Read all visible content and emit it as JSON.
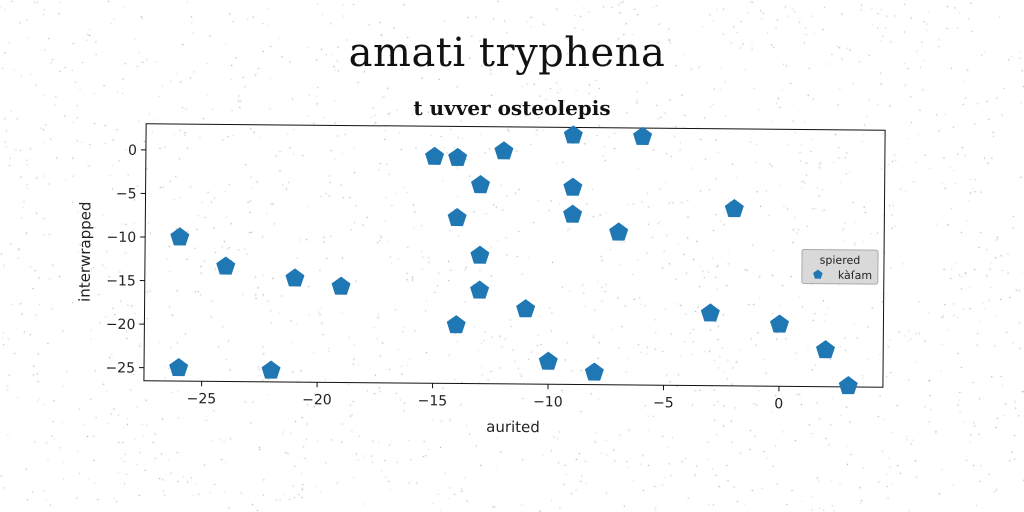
{
  "chart_data": {
    "type": "scatter",
    "title": "amati tryphena",
    "subtitle": "t uvver osteolepis",
    "xlabel": "aurited",
    "ylabel": "interwrapped",
    "xlim": [
      -27.5,
      4.5
    ],
    "ylim": [
      -26.5,
      3
    ],
    "xticks": [
      -25,
      -20,
      -15,
      -10,
      -5,
      0
    ],
    "yticks": [
      0,
      -5,
      -10,
      -15,
      -20,
      -25
    ],
    "grid": false,
    "legend": {
      "title": "spiered",
      "placement": "right"
    },
    "marker_color": "#1f77b4",
    "marker": "pentagon",
    "series": [
      {
        "name": "kàſam",
        "points": [
          [
            -26,
            -10
          ],
          [
            -24,
            -13.3
          ],
          [
            -21,
            -14.6
          ],
          [
            -19,
            -15.5
          ],
          [
            -26,
            -25
          ],
          [
            -22,
            -25.2
          ],
          [
            -15,
            -0.5
          ],
          [
            -14,
            -0.6
          ],
          [
            -12,
            0.2
          ],
          [
            -13,
            -3.7
          ],
          [
            -14,
            -7.5
          ],
          [
            -13,
            -11.8
          ],
          [
            -13,
            -15.8
          ],
          [
            -14,
            -19.8
          ],
          [
            -11,
            -17.9
          ],
          [
            -10,
            -23.9
          ],
          [
            -8,
            -25.1
          ],
          [
            -9,
            2.1
          ],
          [
            -6,
            2
          ],
          [
            -9,
            -3.9
          ],
          [
            -9,
            -7
          ],
          [
            -7,
            -9
          ],
          [
            -2,
            -6.2
          ],
          [
            -3,
            -18.2
          ],
          [
            0,
            -19.4
          ],
          [
            2,
            -22.3
          ],
          [
            3,
            -26.4
          ]
        ]
      }
    ]
  }
}
